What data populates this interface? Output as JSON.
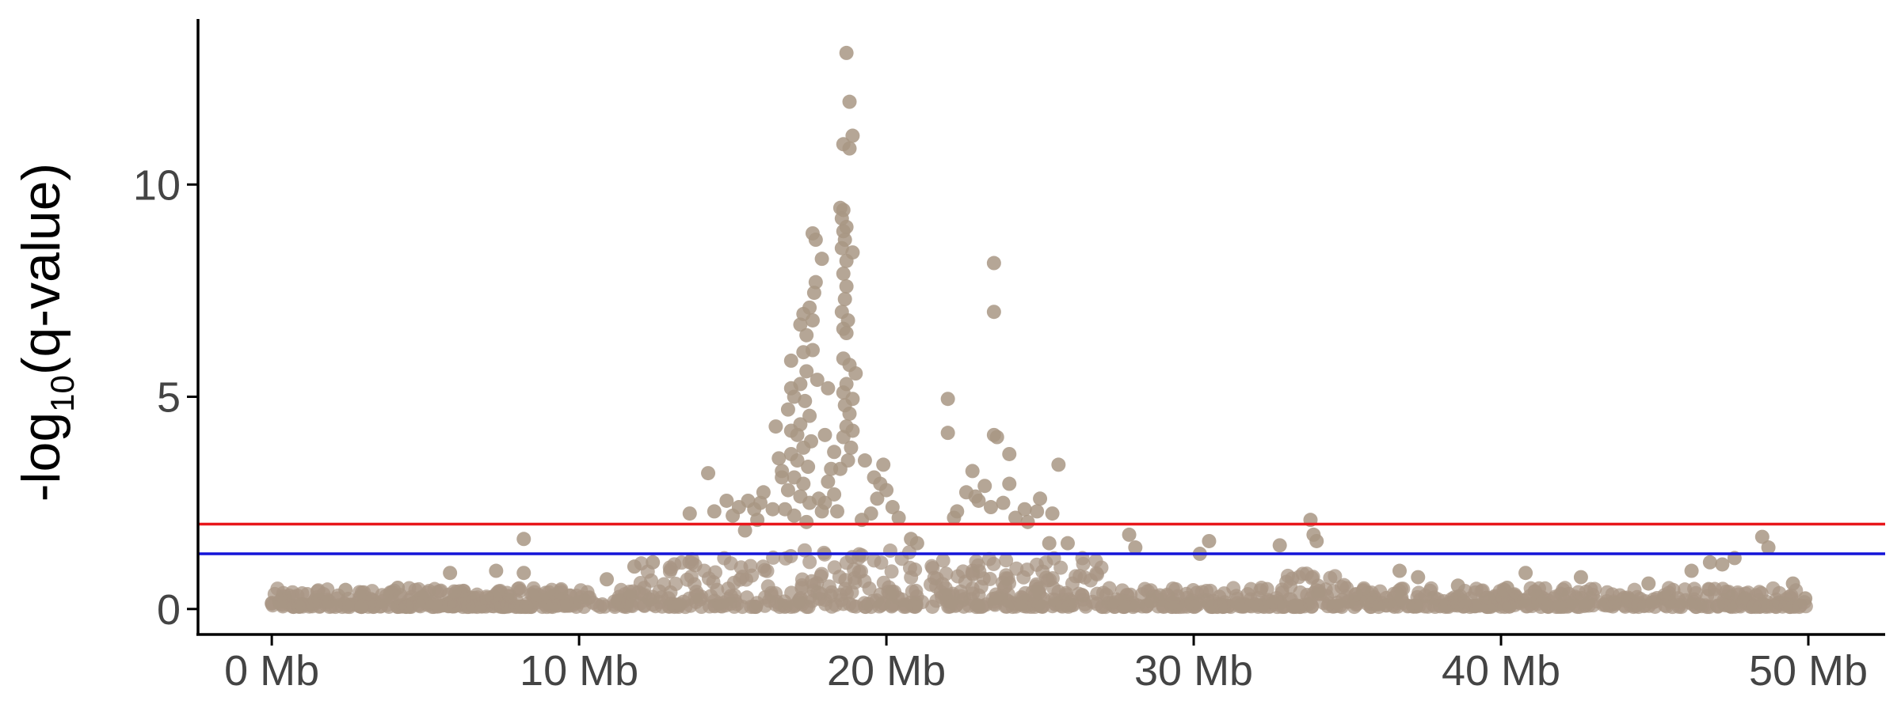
{
  "chart_data": {
    "type": "scatter",
    "title": "",
    "xlabel": "",
    "ylabel": "-log10(q-value)",
    "ylabel_parts": {
      "before": "-log",
      "sub": "10",
      "after": "(q-value)"
    },
    "xlim": [
      -2.4,
      52.5
    ],
    "ylim": [
      -0.6,
      13.9
    ],
    "x_ticks": [
      {
        "value": 0,
        "label": "0 Mb"
      },
      {
        "value": 10,
        "label": "10 Mb"
      },
      {
        "value": 20,
        "label": "20 Mb"
      },
      {
        "value": 30,
        "label": "30 Mb"
      },
      {
        "value": 40,
        "label": "40 Mb"
      },
      {
        "value": 50,
        "label": "50 Mb"
      }
    ],
    "y_ticks": [
      {
        "value": 0,
        "label": "0"
      },
      {
        "value": 5,
        "label": "5"
      },
      {
        "value": 10,
        "label": "10"
      }
    ],
    "x_unit": "Mb",
    "grid": false,
    "legend": "none",
    "point_color": "#a89684",
    "thresholds": [
      {
        "value": 2.0,
        "color": "#e8161b"
      },
      {
        "value": 1.3,
        "color": "#1414d8"
      }
    ],
    "points": [
      [
        18.7,
        13.1
      ],
      [
        18.8,
        11.95
      ],
      [
        18.9,
        11.15
      ],
      [
        18.6,
        10.95
      ],
      [
        18.8,
        10.85
      ],
      [
        18.5,
        9.45
      ],
      [
        18.6,
        9.4
      ],
      [
        18.55,
        9.2
      ],
      [
        18.7,
        9.0
      ],
      [
        18.6,
        8.9
      ],
      [
        18.65,
        8.7
      ],
      [
        18.55,
        8.5
      ],
      [
        18.9,
        8.4
      ],
      [
        18.7,
        8.2
      ],
      [
        18.6,
        7.9
      ],
      [
        18.7,
        7.6
      ],
      [
        18.65,
        7.3
      ],
      [
        18.55,
        7.0
      ],
      [
        18.75,
        6.8
      ],
      [
        18.6,
        6.6
      ],
      [
        18.7,
        6.5
      ],
      [
        18.6,
        5.9
      ],
      [
        18.8,
        5.75
      ],
      [
        19.0,
        5.55
      ],
      [
        18.7,
        5.3
      ],
      [
        18.6,
        5.1
      ],
      [
        18.9,
        4.95
      ],
      [
        18.65,
        4.8
      ],
      [
        18.8,
        4.6
      ],
      [
        18.7,
        4.3
      ],
      [
        18.9,
        4.2
      ],
      [
        18.6,
        4.05
      ],
      [
        18.85,
        3.8
      ],
      [
        18.75,
        3.5
      ],
      [
        18.5,
        3.3
      ],
      [
        17.6,
        8.85
      ],
      [
        17.7,
        8.7
      ],
      [
        17.9,
        8.25
      ],
      [
        17.7,
        7.7
      ],
      [
        17.65,
        7.45
      ],
      [
        17.5,
        7.1
      ],
      [
        17.3,
        6.95
      ],
      [
        17.6,
        6.8
      ],
      [
        17.2,
        6.7
      ],
      [
        17.4,
        6.45
      ],
      [
        17.6,
        6.1
      ],
      [
        17.3,
        6.05
      ],
      [
        16.9,
        5.85
      ],
      [
        17.4,
        5.6
      ],
      [
        17.75,
        5.4
      ],
      [
        17.2,
        5.3
      ],
      [
        16.9,
        5.2
      ],
      [
        17.0,
        5.0
      ],
      [
        17.35,
        4.9
      ],
      [
        16.8,
        4.7
      ],
      [
        17.5,
        4.55
      ],
      [
        17.2,
        4.35
      ],
      [
        16.9,
        4.2
      ],
      [
        17.1,
        4.1
      ],
      [
        17.55,
        3.95
      ],
      [
        17.3,
        3.8
      ],
      [
        16.9,
        3.65
      ],
      [
        17.1,
        3.5
      ],
      [
        17.45,
        3.35
      ],
      [
        16.6,
        3.25
      ],
      [
        17.0,
        3.1
      ],
      [
        17.3,
        2.95
      ],
      [
        16.8,
        2.8
      ],
      [
        17.2,
        2.65
      ],
      [
        17.5,
        2.5
      ],
      [
        16.7,
        2.35
      ],
      [
        17.0,
        2.2
      ],
      [
        17.4,
        2.05
      ],
      [
        16.4,
        4.3
      ],
      [
        16.5,
        3.55
      ],
      [
        16.6,
        3.1
      ],
      [
        16.0,
        2.75
      ],
      [
        15.9,
        2.5
      ],
      [
        16.3,
        2.35
      ],
      [
        18.1,
        5.2
      ],
      [
        18.0,
        4.1
      ],
      [
        18.3,
        3.7
      ],
      [
        18.2,
        3.3
      ],
      [
        18.1,
        3.0
      ],
      [
        18.3,
        2.7
      ],
      [
        18.0,
        2.5
      ],
      [
        18.4,
        2.3
      ],
      [
        17.8,
        2.6
      ],
      [
        17.9,
        2.3
      ],
      [
        15.5,
        2.55
      ],
      [
        15.7,
        2.35
      ],
      [
        15.8,
        2.1
      ],
      [
        15.2,
        2.4
      ],
      [
        15.0,
        2.2
      ],
      [
        14.8,
        2.55
      ],
      [
        14.4,
        2.3
      ],
      [
        14.2,
        3.2
      ],
      [
        13.6,
        2.25
      ],
      [
        15.4,
        1.85
      ],
      [
        19.3,
        3.5
      ],
      [
        19.6,
        3.1
      ],
      [
        19.9,
        3.4
      ],
      [
        19.8,
        2.95
      ],
      [
        20.0,
        2.8
      ],
      [
        19.7,
        2.6
      ],
      [
        20.2,
        2.4
      ],
      [
        19.5,
        2.25
      ],
      [
        20.4,
        2.15
      ],
      [
        19.2,
        2.1
      ],
      [
        20.8,
        1.65
      ],
      [
        21.0,
        1.55
      ],
      [
        23.5,
        8.15
      ],
      [
        23.5,
        7.0
      ],
      [
        22.0,
        4.95
      ],
      [
        22.0,
        4.15
      ],
      [
        23.5,
        4.1
      ],
      [
        23.6,
        4.05
      ],
      [
        24.0,
        3.65
      ],
      [
        25.6,
        3.4
      ],
      [
        22.8,
        3.25
      ],
      [
        23.2,
        2.9
      ],
      [
        24.0,
        2.95
      ],
      [
        22.6,
        2.75
      ],
      [
        22.9,
        2.65
      ],
      [
        25.0,
        2.6
      ],
      [
        23.8,
        2.5
      ],
      [
        24.5,
        2.35
      ],
      [
        24.9,
        2.3
      ],
      [
        22.3,
        2.3
      ],
      [
        23.4,
        2.4
      ],
      [
        24.2,
        2.15
      ],
      [
        25.4,
        2.25
      ],
      [
        23.0,
        2.55
      ],
      [
        22.2,
        2.15
      ],
      [
        24.6,
        2.05
      ],
      [
        25.3,
        1.55
      ],
      [
        25.9,
        1.55
      ],
      [
        27.9,
        1.75
      ],
      [
        28.1,
        1.45
      ],
      [
        30.5,
        1.6
      ],
      [
        30.2,
        1.3
      ],
      [
        32.8,
        1.5
      ],
      [
        33.8,
        2.1
      ],
      [
        33.9,
        1.75
      ],
      [
        34.0,
        1.6
      ],
      [
        8.2,
        1.65
      ],
      [
        7.3,
        0.9
      ],
      [
        8.2,
        0.85
      ],
      [
        5.8,
        0.85
      ],
      [
        2.4,
        0.45
      ],
      [
        4.1,
        0.5
      ],
      [
        10.9,
        0.7
      ],
      [
        11.8,
        1.0
      ],
      [
        12.4,
        1.1
      ],
      [
        36.7,
        0.9
      ],
      [
        37.3,
        0.75
      ],
      [
        38.6,
        0.55
      ],
      [
        40.2,
        0.5
      ],
      [
        40.8,
        0.85
      ],
      [
        42.6,
        0.75
      ],
      [
        44.8,
        0.6
      ],
      [
        46.2,
        0.9
      ],
      [
        46.8,
        1.1
      ],
      [
        47.2,
        1.05
      ],
      [
        47.6,
        1.2
      ],
      [
        48.5,
        1.7
      ],
      [
        48.7,
        1.45
      ],
      [
        49.5,
        0.6
      ],
      [
        49.9,
        0.25
      ]
    ]
  }
}
